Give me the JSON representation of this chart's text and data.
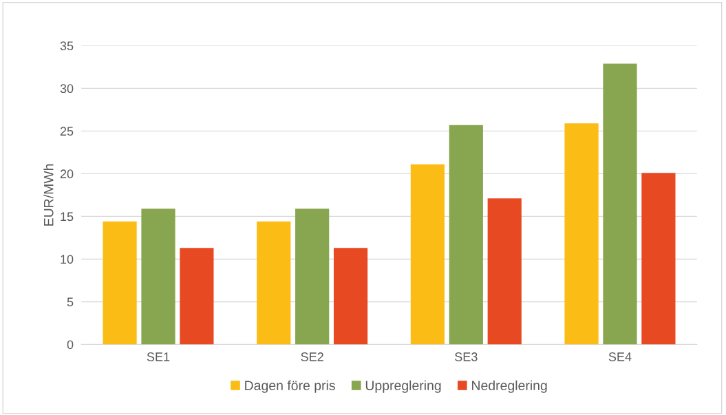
{
  "chart_data": {
    "type": "bar",
    "ylabel": "EUR/MWh",
    "categories": [
      "SE1",
      "SE2",
      "SE3",
      "SE4"
    ],
    "series": [
      {
        "name": "Dagen före pris",
        "color": "#fbbd15",
        "values": [
          14.4,
          14.4,
          21.1,
          25.9
        ]
      },
      {
        "name": "Uppreglering",
        "color": "#88a54f",
        "values": [
          15.9,
          15.9,
          25.7,
          32.9
        ]
      },
      {
        "name": "Nedreglering",
        "color": "#e74a23",
        "values": [
          11.3,
          11.3,
          17.1,
          20.1
        ]
      }
    ],
    "ylim": [
      0,
      35
    ],
    "yticks": [
      0,
      5,
      10,
      15,
      20,
      25,
      30,
      35
    ],
    "grid": "y",
    "legend": "bottom"
  }
}
